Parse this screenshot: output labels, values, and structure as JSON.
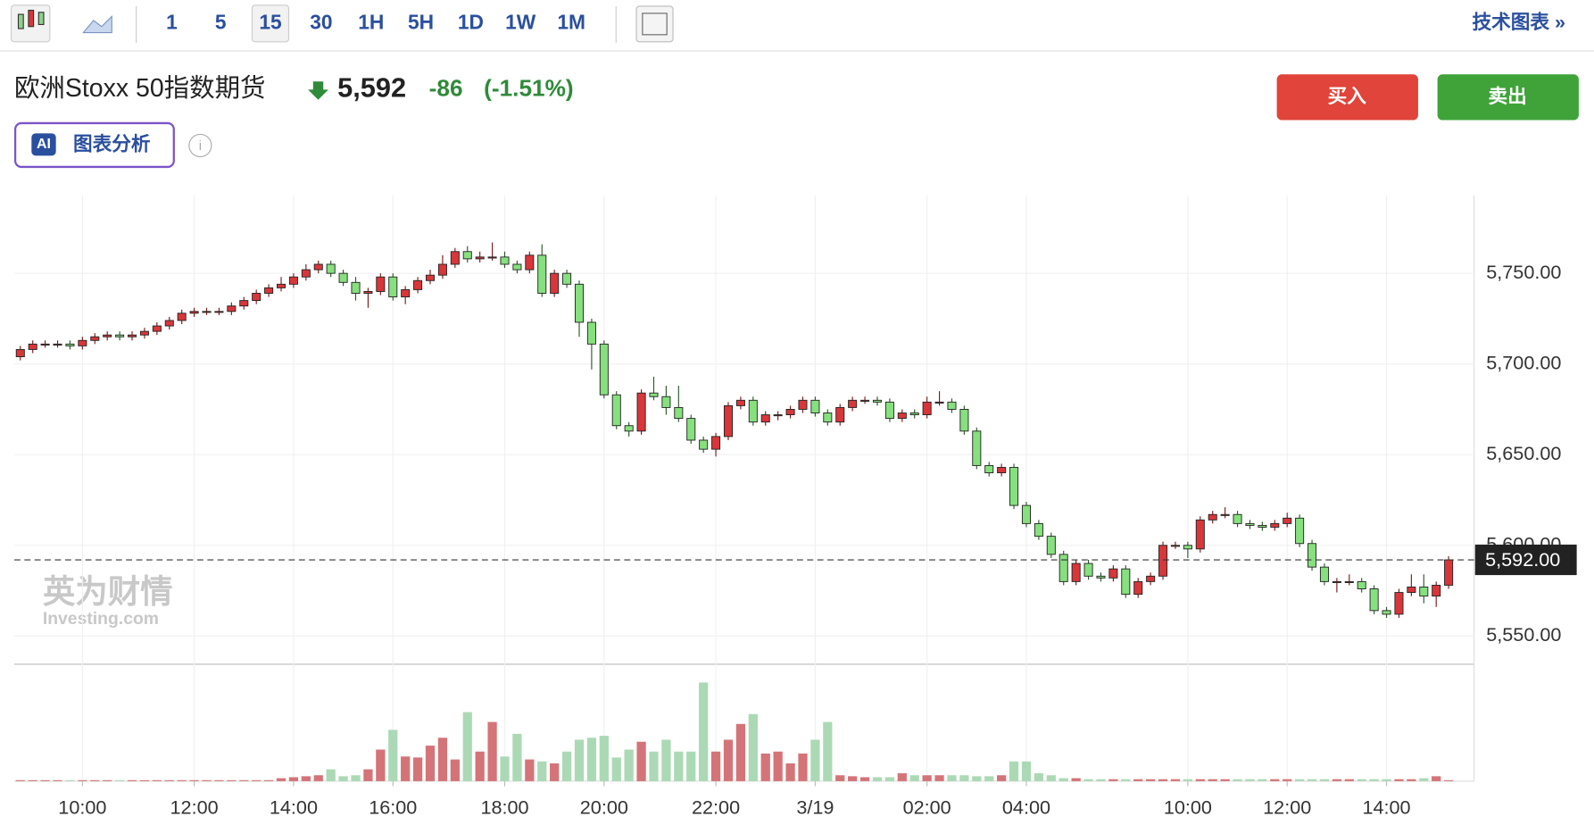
{
  "toolbar": {
    "intervals": [
      "1",
      "5",
      "15",
      "30",
      "1H",
      "5H",
      "1D",
      "1W",
      "1M"
    ],
    "selected": "15",
    "link": "技术图表 »"
  },
  "header": {
    "title": "欧洲Stoxx 50指数期货",
    "price": "5,592",
    "change": "-86",
    "change_pct": "(-1.51%)",
    "buy": "买入",
    "sell": "卖出",
    "ai_badge": "AI",
    "ai_button": "图表分析"
  },
  "watermark": {
    "brand": "英为财情",
    "site": "Investing.com"
  },
  "chart_data": {
    "type": "candlestick",
    "categories": [
      null,
      null,
      null,
      null,
      null,
      "10:00",
      null,
      null,
      null,
      null,
      null,
      null,
      null,
      null,
      "12:00",
      null,
      null,
      null,
      null,
      null,
      null,
      null,
      "14:00",
      null,
      null,
      null,
      null,
      null,
      null,
      null,
      "16:00",
      null,
      null,
      null,
      null,
      null,
      null,
      null,
      null,
      "18:00",
      null,
      null,
      null,
      null,
      null,
      null,
      null,
      "20:00",
      null,
      null,
      null,
      null,
      null,
      null,
      null,
      null,
      "22:00",
      null,
      null,
      null,
      null,
      null,
      null,
      null,
      "3/19",
      null,
      null,
      null,
      null,
      null,
      null,
      null,
      null,
      "02:00",
      null,
      null,
      null,
      null,
      null,
      null,
      null,
      "04:00",
      null,
      null,
      null,
      null,
      null,
      null,
      null,
      null,
      null,
      null,
      null,
      null,
      "10:00",
      null,
      null,
      null,
      null,
      null,
      null,
      null,
      "12:00",
      null,
      null,
      null,
      null,
      null,
      null,
      null,
      "14:00",
      null,
      null,
      null,
      null,
      null
    ],
    "open": [
      5704,
      5708,
      5711,
      5711,
      5711,
      5710,
      5713,
      5715,
      5716,
      5715,
      5716,
      5718,
      5721,
      5724,
      5728,
      5729,
      5729,
      5729,
      5732,
      5735,
      5739,
      5742,
      5744,
      5748,
      5752,
      5755,
      5750,
      5745,
      5739,
      5740,
      5748,
      5737,
      5741,
      5746,
      5749,
      5755,
      5762,
      5758,
      5759,
      5759,
      5755,
      5752,
      5760,
      5739,
      5750,
      5744,
      5723,
      5711,
      5683,
      5666,
      5663,
      5684,
      5682,
      5676,
      5670,
      5658,
      5653,
      5660,
      5677,
      5680,
      5668,
      5672,
      5672,
      5675,
      5680,
      5673,
      5668,
      5676,
      5680,
      5680,
      5679,
      5670,
      5673,
      5672,
      5679,
      5679,
      5675,
      5663,
      5644,
      5640,
      5643,
      5622,
      5612,
      5605,
      5595,
      5580,
      5590,
      5583,
      5582,
      5587,
      5573,
      5580,
      5583,
      5600,
      5600,
      5598,
      5614,
      5617,
      5617,
      5612,
      5611,
      5610,
      5612,
      5615,
      5601,
      5588,
      5580,
      5580,
      5580,
      5576,
      5564,
      5562,
      5574,
      5577,
      5572,
      5578
    ],
    "high": [
      5710,
      5713,
      5713,
      5713,
      5713,
      5715,
      5717,
      5718,
      5718,
      5718,
      5720,
      5723,
      5726,
      5730,
      5731,
      5731,
      5731,
      5734,
      5737,
      5741,
      5744,
      5748,
      5750,
      5755,
      5757,
      5757,
      5752,
      5748,
      5742,
      5750,
      5750,
      5743,
      5748,
      5752,
      5760,
      5764,
      5765,
      5762,
      5767,
      5762,
      5757,
      5762,
      5766,
      5752,
      5752,
      5746,
      5725,
      5713,
      5685,
      5668,
      5686,
      5693,
      5688,
      5688,
      5672,
      5660,
      5662,
      5679,
      5682,
      5682,
      5674,
      5674,
      5677,
      5682,
      5682,
      5675,
      5678,
      5682,
      5682,
      5682,
      5681,
      5675,
      5675,
      5682,
      5685,
      5681,
      5677,
      5665,
      5646,
      5645,
      5645,
      5624,
      5614,
      5607,
      5597,
      5592,
      5592,
      5585,
      5589,
      5589,
      5582,
      5585,
      5602,
      5602,
      5602,
      5616,
      5619,
      5621,
      5619,
      5614,
      5613,
      5614,
      5618,
      5617,
      5603,
      5590,
      5582,
      5584,
      5582,
      5578,
      5566,
      5576,
      5584,
      5584,
      5580,
      5594
    ],
    "low": [
      5702,
      5706,
      5709,
      5709,
      5708,
      5708,
      5711,
      5713,
      5713,
      5713,
      5714,
      5716,
      5719,
      5722,
      5726,
      5727,
      5727,
      5727,
      5730,
      5733,
      5737,
      5740,
      5742,
      5746,
      5750,
      5748,
      5743,
      5735,
      5731,
      5738,
      5735,
      5733,
      5739,
      5744,
      5747,
      5753,
      5756,
      5756,
      5757,
      5753,
      5750,
      5750,
      5737,
      5737,
      5742,
      5715,
      5697,
      5681,
      5664,
      5660,
      5661,
      5680,
      5672,
      5668,
      5656,
      5651,
      5649,
      5658,
      5675,
      5666,
      5666,
      5669,
      5670,
      5673,
      5671,
      5666,
      5666,
      5674,
      5678,
      5677,
      5668,
      5668,
      5670,
      5670,
      5677,
      5673,
      5661,
      5642,
      5638,
      5638,
      5620,
      5610,
      5603,
      5593,
      5578,
      5578,
      5581,
      5580,
      5580,
      5571,
      5571,
      5578,
      5581,
      5598,
      5593,
      5596,
      5612,
      5615,
      5610,
      5609,
      5608,
      5608,
      5610,
      5599,
      5586,
      5578,
      5574,
      5578,
      5574,
      5562,
      5560,
      5560,
      5572,
      5568,
      5566,
      5576
    ],
    "close": [
      5708,
      5711,
      5711,
      5711,
      5710,
      5713,
      5715,
      5716,
      5715,
      5716,
      5718,
      5721,
      5724,
      5728,
      5729,
      5729,
      5729,
      5732,
      5735,
      5739,
      5742,
      5744,
      5748,
      5752,
      5755,
      5750,
      5745,
      5739,
      5740,
      5748,
      5737,
      5741,
      5746,
      5749,
      5755,
      5762,
      5758,
      5759,
      5759,
      5755,
      5752,
      5760,
      5739,
      5750,
      5744,
      5723,
      5711,
      5683,
      5666,
      5663,
      5684,
      5682,
      5676,
      5670,
      5658,
      5653,
      5660,
      5677,
      5680,
      5668,
      5672,
      5672,
      5675,
      5680,
      5673,
      5668,
      5676,
      5680,
      5680,
      5679,
      5670,
      5673,
      5672,
      5679,
      5679,
      5675,
      5663,
      5644,
      5640,
      5643,
      5622,
      5612,
      5605,
      5595,
      5580,
      5590,
      5583,
      5582,
      5587,
      5573,
      5580,
      5583,
      5600,
      5600,
      5598,
      5614,
      5617,
      5617,
      5612,
      5611,
      5610,
      5612,
      5615,
      5601,
      5588,
      5580,
      5580,
      5580,
      5576,
      5564,
      5562,
      5574,
      5577,
      5572,
      5578,
      5592
    ],
    "volume": [
      1,
      1,
      1,
      1,
      1,
      1,
      1,
      1,
      1,
      1,
      1,
      1,
      1,
      1,
      1,
      1,
      1,
      1,
      1,
      1,
      1,
      3,
      4,
      5,
      6,
      12,
      5,
      6,
      12,
      32,
      52,
      25,
      24,
      36,
      44,
      22,
      70,
      30,
      60,
      25,
      48,
      22,
      20,
      18,
      30,
      42,
      44,
      46,
      24,
      32,
      40,
      30,
      42,
      30,
      30,
      100,
      30,
      42,
      58,
      68,
      28,
      30,
      18,
      28,
      42,
      60,
      6,
      5,
      4,
      4,
      4,
      8,
      6,
      6,
      6,
      6,
      6,
      5,
      5,
      6,
      20,
      20,
      8,
      6,
      3,
      3,
      2,
      2,
      2,
      2,
      2,
      2,
      2,
      2,
      2,
      2,
      2,
      2,
      2,
      2,
      2,
      2,
      2,
      2,
      2,
      2,
      2,
      2,
      2,
      2,
      2,
      2,
      2,
      3,
      5,
      1
    ],
    "volume_lim": [
      0,
      100
    ],
    "up_color": "#d9363a",
    "down_color": "#86e07e",
    "up_volume_color": "#d47478",
    "down_volume_color": "#acd9b5",
    "ylim": [
      5535,
      5793
    ],
    "yticks": [
      {
        "value": 5550,
        "label": "5,550.00"
      },
      {
        "value": 5600,
        "label": "5,600.00"
      },
      {
        "value": 5650,
        "label": "5,650.00"
      },
      {
        "value": 5700,
        "label": "5,700.00"
      },
      {
        "value": 5750,
        "label": "5,750.00"
      }
    ],
    "last_price": {
      "value": 5592,
      "label": "5,592.00"
    },
    "grid": true
  }
}
